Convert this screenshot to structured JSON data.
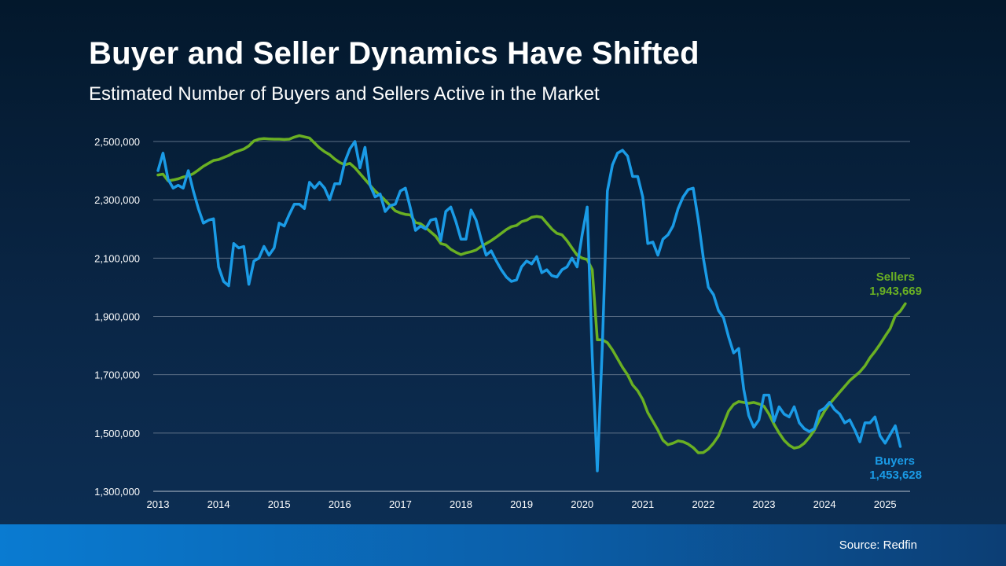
{
  "header": {
    "title": "Buyer and Seller Dynamics Have Shifted",
    "subtitle": "Estimated Number of Buyers and Sellers Active in the Market"
  },
  "footer": {
    "source": "Source: Redfin"
  },
  "colors": {
    "buyers": "#1a9be6",
    "sellers": "#6ab023",
    "grid": "#5c6f86",
    "text": "#ffffff"
  },
  "chart_data": {
    "type": "line",
    "title": "",
    "xlabel": "",
    "ylabel": "",
    "xlim": [
      2013,
      2025.35
    ],
    "ylim": [
      1300000,
      2500000
    ],
    "y_ticks": [
      "1,300,000",
      "1,500,000",
      "1,700,000",
      "1,900,000",
      "2,100,000",
      "2,300,000",
      "2,500,000"
    ],
    "x_ticks": [
      "2013",
      "2014",
      "2015",
      "2016",
      "2017",
      "2018",
      "2019",
      "2020",
      "2021",
      "2022",
      "2023",
      "2024",
      "2025"
    ],
    "grid": true,
    "x_start": "2013-01",
    "x_step": "monthly",
    "series": [
      {
        "name": "Buyers",
        "end_label": "1,453,628",
        "color": "#1a9be6",
        "values": [
          2400000,
          2460000,
          2370000,
          2340000,
          2350000,
          2340000,
          2400000,
          2330000,
          2270000,
          2220000,
          2230000,
          2235000,
          2070000,
          2020000,
          2005000,
          2150000,
          2135000,
          2140000,
          2010000,
          2090000,
          2100000,
          2140000,
          2110000,
          2135000,
          2220000,
          2210000,
          2250000,
          2285000,
          2285000,
          2270000,
          2360000,
          2340000,
          2360000,
          2340000,
          2300000,
          2355000,
          2355000,
          2430000,
          2475000,
          2500000,
          2410000,
          2480000,
          2350000,
          2310000,
          2320000,
          2260000,
          2280000,
          2285000,
          2330000,
          2340000,
          2270000,
          2195000,
          2210000,
          2200000,
          2230000,
          2235000,
          2160000,
          2260000,
          2275000,
          2225000,
          2165000,
          2165000,
          2265000,
          2230000,
          2165000,
          2110000,
          2125000,
          2090000,
          2060000,
          2035000,
          2020000,
          2025000,
          2070000,
          2090000,
          2080000,
          2105000,
          2050000,
          2060000,
          2040000,
          2035000,
          2060000,
          2070000,
          2100000,
          2070000,
          2180000,
          2275000,
          1760000,
          1370000,
          1800000,
          2330000,
          2420000,
          2460000,
          2470000,
          2450000,
          2380000,
          2380000,
          2310000,
          2150000,
          2155000,
          2110000,
          2165000,
          2180000,
          2210000,
          2270000,
          2310000,
          2335000,
          2340000,
          2230000,
          2100000,
          2000000,
          1975000,
          1920000,
          1895000,
          1830000,
          1775000,
          1790000,
          1650000,
          1560000,
          1520000,
          1545000,
          1630000,
          1630000,
          1540000,
          1590000,
          1565000,
          1555000,
          1590000,
          1535000,
          1515000,
          1505000,
          1515000,
          1575000,
          1585000,
          1605000,
          1580000,
          1565000,
          1535000,
          1545000,
          1510000,
          1470000,
          1535000,
          1535000,
          1555000,
          1490000,
          1465000,
          1495000,
          1525000,
          1453628
        ]
      },
      {
        "name": "Sellers",
        "end_label": "1,943,669",
        "color": "#6ab023",
        "values": [
          2385000,
          2388000,
          2365000,
          2368000,
          2372000,
          2378000,
          2382000,
          2390000,
          2402000,
          2415000,
          2425000,
          2435000,
          2438000,
          2445000,
          2452000,
          2462000,
          2468000,
          2474000,
          2485000,
          2502000,
          2508000,
          2510000,
          2509000,
          2508000,
          2508000,
          2507000,
          2508000,
          2515000,
          2520000,
          2516000,
          2512000,
          2495000,
          2478000,
          2465000,
          2455000,
          2440000,
          2428000,
          2420000,
          2425000,
          2410000,
          2390000,
          2370000,
          2350000,
          2330000,
          2315000,
          2298000,
          2280000,
          2262000,
          2255000,
          2250000,
          2248000,
          2222000,
          2218000,
          2205000,
          2190000,
          2175000,
          2150000,
          2145000,
          2130000,
          2120000,
          2112000,
          2118000,
          2122000,
          2128000,
          2140000,
          2150000,
          2160000,
          2172000,
          2185000,
          2198000,
          2208000,
          2212000,
          2225000,
          2230000,
          2240000,
          2243000,
          2240000,
          2220000,
          2200000,
          2185000,
          2180000,
          2160000,
          2135000,
          2110000,
          2100000,
          2095000,
          2060000,
          1820000,
          1820000,
          1810000,
          1785000,
          1755000,
          1725000,
          1700000,
          1665000,
          1645000,
          1615000,
          1570000,
          1540000,
          1510000,
          1475000,
          1460000,
          1465000,
          1473000,
          1470000,
          1462000,
          1450000,
          1432000,
          1433000,
          1445000,
          1465000,
          1490000,
          1532000,
          1575000,
          1598000,
          1608000,
          1605000,
          1602000,
          1605000,
          1600000,
          1592000,
          1565000,
          1530000,
          1500000,
          1475000,
          1458000,
          1448000,
          1452000,
          1465000,
          1485000,
          1510000,
          1545000,
          1575000,
          1600000,
          1620000,
          1640000,
          1660000,
          1680000,
          1695000,
          1710000,
          1730000,
          1758000,
          1780000,
          1805000,
          1832000,
          1858000,
          1902000,
          1918000,
          1943669
        ]
      }
    ]
  }
}
